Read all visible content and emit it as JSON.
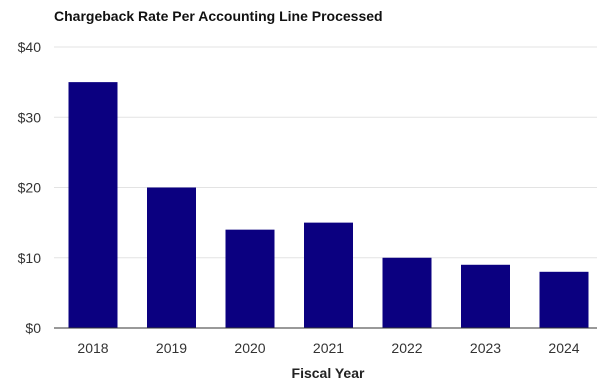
{
  "chart_data": {
    "type": "bar",
    "title": "Chargeback Rate Per Accounting Line Processed",
    "xlabel": "Fiscal Year",
    "ylabel": "",
    "categories": [
      "2018",
      "2019",
      "2020",
      "2021",
      "2022",
      "2023",
      "2024"
    ],
    "values": [
      35,
      20,
      14,
      15,
      10,
      9,
      8
    ],
    "ylim": [
      0,
      40
    ],
    "yticks": [
      0,
      10,
      20,
      30,
      40
    ],
    "ytick_labels": [
      "$0",
      "$10",
      "$20",
      "$30",
      "$40"
    ],
    "bar_color": "#0b0080",
    "grid": true,
    "legend": "none"
  }
}
